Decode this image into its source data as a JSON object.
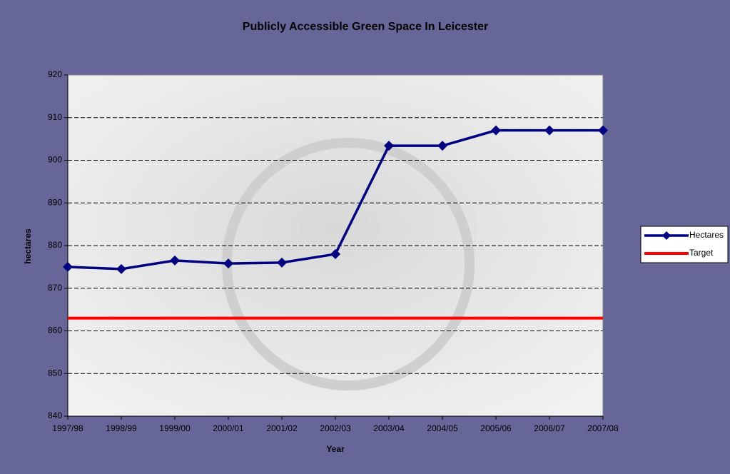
{
  "chart_data": {
    "type": "line",
    "title": "Publicly Accessible Green Space In Leicester",
    "x_label": "Year",
    "y_label": "hectares",
    "categories": [
      "1997/98",
      "1998/99",
      "1999/00",
      "2000/01",
      "2001/02",
      "2002/03",
      "2003/04",
      "2004/05",
      "2005/06",
      "2006/07",
      "2007/08"
    ],
    "series": [
      {
        "name": "Hectares",
        "color": "#000080",
        "marker": "diamond",
        "values": [
          875,
          874.5,
          876.5,
          875.8,
          876,
          878,
          903.4,
          903.4,
          907,
          907,
          907
        ]
      },
      {
        "name": "Target",
        "color": "#ff0000",
        "marker": "none",
        "values": [
          863,
          863,
          863,
          863,
          863,
          863,
          863,
          863,
          863,
          863,
          863
        ]
      }
    ],
    "ylim": [
      840,
      920
    ],
    "yticks": [
      840,
      850,
      860,
      870,
      880,
      890,
      900,
      910,
      920
    ],
    "grid": true,
    "legend": "right"
  }
}
